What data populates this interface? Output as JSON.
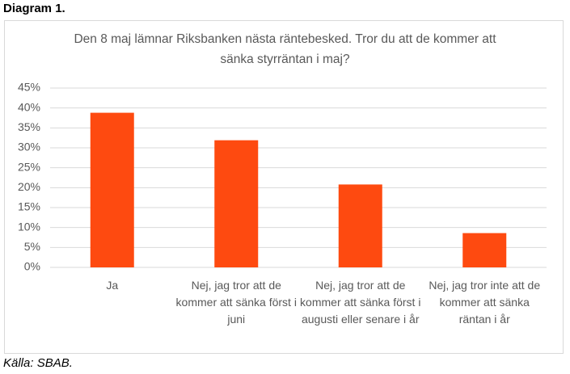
{
  "header": "Diagram 1.",
  "source": "Källa: SBAB.",
  "chart_data": {
    "type": "bar",
    "title": "Den 8 maj lämnar Riksbanken nästa räntebesked. Tror du att de kommer att sänka styrräntan i maj?",
    "categories": [
      "Ja",
      "Nej, jag tror att de kommer att sänka först i juni",
      "Nej, jag tror att de kommer att sänka först i augusti eller senare i år",
      "Nej, jag tror inte att de kommer att sänka räntan i år"
    ],
    "values": [
      38.8,
      31.9,
      20.8,
      8.6
    ],
    "color": "#fe4a10",
    "ylim": [
      0,
      45
    ],
    "yticks": [
      {
        "value": 0,
        "label": "0%"
      },
      {
        "value": 5,
        "label": "5%"
      },
      {
        "value": 10,
        "label": "10%"
      },
      {
        "value": 15,
        "label": "15%"
      },
      {
        "value": 20,
        "label": "20%"
      },
      {
        "value": 25,
        "label": "25%"
      },
      {
        "value": 30,
        "label": "30%"
      },
      {
        "value": 35,
        "label": "35%"
      },
      {
        "value": 40,
        "label": "40%"
      },
      {
        "value": 45,
        "label": "45%"
      }
    ],
    "grid": true
  }
}
